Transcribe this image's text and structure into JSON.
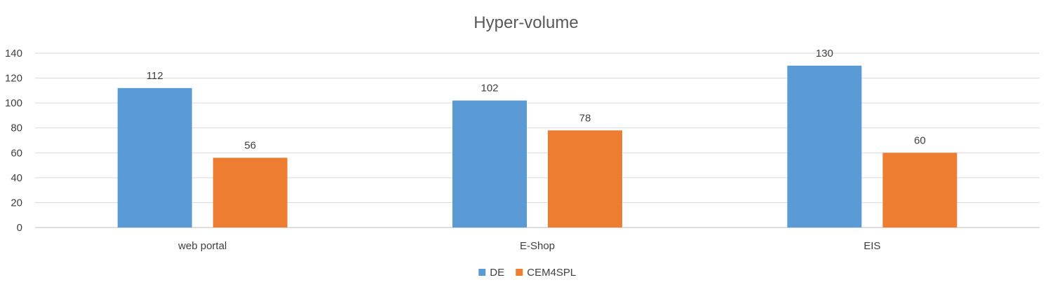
{
  "chart_data": {
    "type": "bar",
    "title": "Hyper-volume",
    "xlabel": "",
    "ylabel": "",
    "categories": [
      "web portal",
      "E-Shop",
      "EIS"
    ],
    "series": [
      {
        "name": "DE",
        "values": [
          112,
          102,
          130
        ],
        "color": "#5b9bd5"
      },
      {
        "name": "CEM4SPL",
        "values": [
          56,
          78,
          60
        ],
        "color": "#ed7d31"
      }
    ],
    "ylim": [
      0,
      140
    ],
    "yticks": [
      0,
      20,
      40,
      60,
      80,
      100,
      120,
      140
    ],
    "grid": true,
    "legend": "bottom",
    "data_labels": true
  }
}
